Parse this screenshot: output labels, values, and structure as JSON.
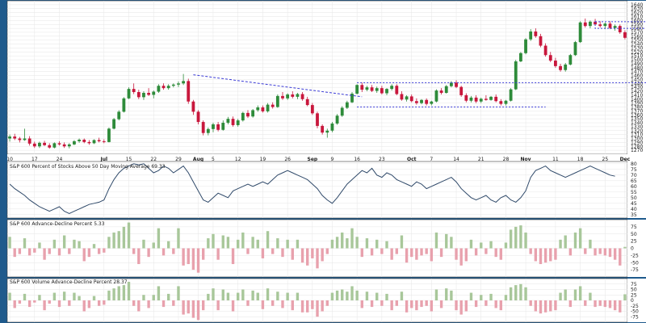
{
  "colors": {
    "frame": "#1f5a8c",
    "panel_bg": "#ffffff",
    "panel_border": "#3a3a3a",
    "grid": "#e6e6e6",
    "up": "#2e8b3a",
    "down": "#c8173c",
    "bar_pos": "#a8c79a",
    "bar_neg": "#e8a1ad",
    "line": "#304a6a",
    "annotation": "#3b3bd6"
  },
  "chart_data": {
    "type": "candlestick",
    "x_labels": [
      {
        "i": 0,
        "label": "10"
      },
      {
        "i": 5,
        "label": "17"
      },
      {
        "i": 10,
        "label": "24"
      },
      {
        "i": 19,
        "label": "Jul",
        "month": true
      },
      {
        "i": 24,
        "label": "15"
      },
      {
        "i": 29,
        "label": "22"
      },
      {
        "i": 34,
        "label": "29"
      },
      {
        "i": 38,
        "label": "Aug",
        "month": true
      },
      {
        "i": 41,
        "label": "5"
      },
      {
        "i": 46,
        "label": "12"
      },
      {
        "i": 51,
        "label": "19"
      },
      {
        "i": 56,
        "label": "26"
      },
      {
        "i": 61,
        "label": "Sep",
        "month": true
      },
      {
        "i": 65,
        "label": "9"
      },
      {
        "i": 70,
        "label": "16"
      },
      {
        "i": 75,
        "label": "23"
      },
      {
        "i": 81,
        "label": "Oct",
        "month": true
      },
      {
        "i": 85,
        "label": "7"
      },
      {
        "i": 90,
        "label": "14"
      },
      {
        "i": 95,
        "label": "21"
      },
      {
        "i": 100,
        "label": "28"
      },
      {
        "i": 104,
        "label": "Nov",
        "month": true
      },
      {
        "i": 110,
        "label": "11"
      },
      {
        "i": 115,
        "label": "18"
      },
      {
        "i": 120,
        "label": "25"
      },
      {
        "i": 124,
        "label": "Dec",
        "month": true
      },
      {
        "i": 129,
        "label": "9"
      }
    ],
    "price_panel": {
      "ylim": [
        1260,
        1650
      ],
      "yticks": [
        1270,
        1280,
        1290,
        1300,
        1310,
        1320,
        1330,
        1340,
        1350,
        1360,
        1370,
        1380,
        1390,
        1400,
        1410,
        1420,
        1430,
        1440,
        1450,
        1460,
        1470,
        1480,
        1490,
        1500,
        1510,
        1520,
        1530,
        1540,
        1550,
        1560,
        1570,
        1580,
        1590,
        1600,
        1610,
        1620,
        1630,
        1640
      ],
      "ohlc": [
        [
          1300,
          1310,
          1292,
          1305
        ],
        [
          1305,
          1312,
          1296,
          1300
        ],
        [
          1300,
          1304,
          1290,
          1296
        ],
        [
          1296,
          1325,
          1294,
          1300
        ],
        [
          1300,
          1306,
          1282,
          1287
        ],
        [
          1287,
          1292,
          1276,
          1280
        ],
        [
          1280,
          1292,
          1276,
          1289
        ],
        [
          1289,
          1294,
          1281,
          1283
        ],
        [
          1283,
          1288,
          1274,
          1277
        ],
        [
          1277,
          1290,
          1275,
          1288
        ],
        [
          1288,
          1293,
          1282,
          1285
        ],
        [
          1285,
          1290,
          1276,
          1280
        ],
        [
          1280,
          1288,
          1275,
          1285
        ],
        [
          1285,
          1296,
          1283,
          1293
        ],
        [
          1293,
          1300,
          1289,
          1297
        ],
        [
          1297,
          1300,
          1288,
          1291
        ],
        [
          1291,
          1296,
          1284,
          1288
        ],
        [
          1288,
          1298,
          1286,
          1296
        ],
        [
          1296,
          1302,
          1290,
          1293
        ],
        [
          1293,
          1298,
          1288,
          1291
        ],
        [
          1291,
          1328,
          1290,
          1325
        ],
        [
          1325,
          1352,
          1323,
          1349
        ],
        [
          1349,
          1372,
          1346,
          1368
        ],
        [
          1368,
          1405,
          1366,
          1402
        ],
        [
          1402,
          1430,
          1400,
          1426
        ],
        [
          1426,
          1440,
          1413,
          1418
        ],
        [
          1418,
          1424,
          1400,
          1405
        ],
        [
          1405,
          1420,
          1398,
          1416
        ],
        [
          1416,
          1428,
          1408,
          1411
        ],
        [
          1411,
          1422,
          1402,
          1419
        ],
        [
          1419,
          1438,
          1416,
          1434
        ],
        [
          1434,
          1440,
          1424,
          1428
        ],
        [
          1428,
          1438,
          1424,
          1434
        ],
        [
          1434,
          1440,
          1430,
          1437
        ],
        [
          1437,
          1445,
          1431,
          1440
        ],
        [
          1440,
          1464,
          1436,
          1446
        ],
        [
          1446,
          1452,
          1388,
          1394
        ],
        [
          1394,
          1398,
          1360,
          1368
        ],
        [
          1368,
          1372,
          1336,
          1342
        ],
        [
          1342,
          1346,
          1308,
          1314
        ],
        [
          1314,
          1328,
          1308,
          1324
        ],
        [
          1324,
          1340,
          1316,
          1336
        ],
        [
          1336,
          1342,
          1318,
          1322
        ],
        [
          1322,
          1346,
          1320,
          1340
        ],
        [
          1340,
          1355,
          1336,
          1350
        ],
        [
          1350,
          1356,
          1330,
          1334
        ],
        [
          1334,
          1350,
          1330,
          1346
        ],
        [
          1346,
          1368,
          1343,
          1365
        ],
        [
          1365,
          1372,
          1352,
          1356
        ],
        [
          1356,
          1375,
          1353,
          1372
        ],
        [
          1372,
          1384,
          1368,
          1379
        ],
        [
          1379,
          1384,
          1366,
          1369
        ],
        [
          1369,
          1390,
          1366,
          1386
        ],
        [
          1386,
          1392,
          1376,
          1380
        ],
        [
          1380,
          1412,
          1378,
          1408
        ],
        [
          1408,
          1418,
          1398,
          1402
        ],
        [
          1402,
          1415,
          1398,
          1412
        ],
        [
          1412,
          1420,
          1402,
          1406
        ],
        [
          1406,
          1416,
          1400,
          1413
        ],
        [
          1413,
          1418,
          1396,
          1400
        ],
        [
          1400,
          1406,
          1382,
          1385
        ],
        [
          1385,
          1390,
          1360,
          1364
        ],
        [
          1364,
          1368,
          1326,
          1332
        ],
        [
          1332,
          1336,
          1310,
          1315
        ],
        [
          1315,
          1325,
          1302,
          1320
        ],
        [
          1320,
          1342,
          1316,
          1338
        ],
        [
          1338,
          1362,
          1335,
          1358
        ],
        [
          1358,
          1382,
          1355,
          1378
        ],
        [
          1378,
          1396,
          1375,
          1392
        ],
        [
          1392,
          1418,
          1390,
          1414
        ],
        [
          1414,
          1438,
          1412,
          1436
        ],
        [
          1436,
          1442,
          1418,
          1424
        ],
        [
          1424,
          1434,
          1420,
          1430
        ],
        [
          1430,
          1436,
          1418,
          1421
        ],
        [
          1421,
          1432,
          1416,
          1428
        ],
        [
          1428,
          1434,
          1412,
          1415
        ],
        [
          1415,
          1428,
          1410,
          1426
        ],
        [
          1426,
          1438,
          1422,
          1434
        ],
        [
          1434,
          1438,
          1410,
          1413
        ],
        [
          1413,
          1420,
          1396,
          1399
        ],
        [
          1399,
          1410,
          1394,
          1407
        ],
        [
          1407,
          1412,
          1392,
          1395
        ],
        [
          1395,
          1402,
          1386,
          1390
        ],
        [
          1390,
          1400,
          1387,
          1398
        ],
        [
          1398,
          1402,
          1384,
          1388
        ],
        [
          1388,
          1396,
          1384,
          1394
        ],
        [
          1394,
          1425,
          1392,
          1422
        ],
        [
          1422,
          1428,
          1412,
          1416
        ],
        [
          1416,
          1436,
          1414,
          1433
        ],
        [
          1433,
          1446,
          1430,
          1442
        ],
        [
          1442,
          1448,
          1428,
          1431
        ],
        [
          1431,
          1434,
          1406,
          1410
        ],
        [
          1410,
          1415,
          1392,
          1396
        ],
        [
          1396,
          1408,
          1392,
          1404
        ],
        [
          1404,
          1410,
          1390,
          1394
        ],
        [
          1394,
          1404,
          1390,
          1401
        ],
        [
          1401,
          1410,
          1396,
          1398
        ],
        [
          1398,
          1408,
          1396,
          1406
        ],
        [
          1406,
          1412,
          1392,
          1395
        ],
        [
          1395,
          1400,
          1384,
          1388
        ],
        [
          1388,
          1398,
          1384,
          1396
        ],
        [
          1396,
          1428,
          1394,
          1425
        ],
        [
          1425,
          1500,
          1423,
          1496
        ],
        [
          1496,
          1520,
          1494,
          1517
        ],
        [
          1517,
          1555,
          1514,
          1552
        ],
        [
          1552,
          1578,
          1548,
          1572
        ],
        [
          1572,
          1580,
          1556,
          1560
        ],
        [
          1560,
          1566,
          1532,
          1536
        ],
        [
          1536,
          1542,
          1508,
          1512
        ],
        [
          1512,
          1520,
          1494,
          1498
        ],
        [
          1498,
          1505,
          1480,
          1484
        ],
        [
          1484,
          1490,
          1470,
          1474
        ],
        [
          1474,
          1492,
          1470,
          1488
        ],
        [
          1488,
          1515,
          1486,
          1512
        ],
        [
          1512,
          1548,
          1510,
          1545
        ],
        [
          1545,
          1598,
          1543,
          1595
        ],
        [
          1595,
          1605,
          1582,
          1586
        ],
        [
          1586,
          1600,
          1580,
          1597
        ],
        [
          1597,
          1604,
          1586,
          1590
        ],
        [
          1590,
          1598,
          1582,
          1586
        ],
        [
          1586,
          1595,
          1578,
          1592
        ],
        [
          1592,
          1598,
          1578,
          1581
        ],
        [
          1581,
          1590,
          1574,
          1586
        ],
        [
          1586,
          1590,
          1566,
          1570
        ],
        [
          1570,
          1575,
          1552,
          1556
        ]
      ],
      "trendline": {
        "from": [
          37,
          1462
        ],
        "to": [
          71,
          1406
        ]
      },
      "resistance": {
        "from": [
          70,
          1442
        ],
        "to": [
          134,
          1442
        ]
      },
      "support": {
        "from": [
          70,
          1380
        ],
        "to": [
          108,
          1380
        ]
      },
      "box": {
        "x": [
          118,
          134
        ],
        "y": [
          1580,
          1597
        ]
      }
    },
    "breadth_panel": {
      "title": "S&P 600 Percent of Stocks Above 50 Day Moving Average 69.33",
      "ylim": [
        32,
        82
      ],
      "yticks": [
        35,
        40,
        45,
        50,
        55,
        60,
        65,
        70,
        75,
        80
      ],
      "values": [
        62,
        58,
        55,
        52,
        48,
        45,
        42,
        40,
        38,
        40,
        42,
        38,
        36,
        38,
        40,
        42,
        44,
        45,
        46,
        48,
        58,
        66,
        72,
        76,
        78,
        80,
        79,
        80,
        76,
        72,
        74,
        78,
        76,
        72,
        75,
        78,
        72,
        64,
        56,
        48,
        46,
        50,
        54,
        52,
        50,
        56,
        58,
        60,
        62,
        60,
        62,
        64,
        62,
        66,
        70,
        72,
        74,
        72,
        70,
        68,
        66,
        62,
        58,
        52,
        48,
        45,
        50,
        56,
        62,
        66,
        70,
        74,
        72,
        76,
        70,
        68,
        72,
        70,
        66,
        64,
        62,
        60,
        64,
        62,
        58,
        60,
        62,
        64,
        66,
        68,
        64,
        58,
        54,
        50,
        48,
        50,
        52,
        48,
        46,
        50,
        52,
        48,
        46,
        50,
        56,
        68,
        74,
        76,
        78,
        74,
        72,
        70,
        68,
        70,
        72,
        74,
        76,
        78,
        76,
        74,
        72,
        70,
        69
      ],
      "label_value": "69.33"
    },
    "ad_panel": {
      "title": "S&P 600 Advance-Decline Percent 5.33",
      "ylim": [
        -100,
        100
      ],
      "yticks": [
        -75,
        -50,
        -25,
        0,
        25,
        50,
        75,
        100
      ],
      "values": [
        40,
        -30,
        -20,
        35,
        -25,
        -15,
        20,
        -40,
        -20,
        30,
        -25,
        45,
        -20,
        30,
        25,
        -45,
        -30,
        15,
        -20,
        -15,
        40,
        55,
        60,
        75,
        90,
        -20,
        -55,
        30,
        -30,
        20,
        70,
        -25,
        25,
        -20,
        70,
        -60,
        -55,
        -75,
        -85,
        -40,
        35,
        50,
        -40,
        45,
        40,
        -55,
        30,
        55,
        -20,
        40,
        30,
        -35,
        60,
        -20,
        35,
        -30,
        30,
        -40,
        30,
        -50,
        -60,
        -35,
        -70,
        -45,
        -20,
        30,
        40,
        55,
        35,
        70,
        40,
        -30,
        35,
        -25,
        30,
        -20,
        25,
        -40,
        -20,
        45,
        -50,
        -30,
        -40,
        -25,
        -20,
        -45,
        55,
        -30,
        50,
        40,
        -40,
        -60,
        -45,
        30,
        -25,
        20,
        -20,
        25,
        -30,
        -40,
        20,
        65,
        75,
        80,
        55,
        -20,
        -45,
        -55,
        -50,
        -45,
        -40,
        30,
        45,
        -25,
        55,
        70,
        -20,
        30,
        -25,
        -20,
        -25,
        -30,
        -40,
        -60,
        5
      ]
    },
    "vol_panel": {
      "title": "S&P 600 Volume Advance-Decline Percent 28.37",
      "ylim": [
        -100,
        100
      ],
      "yticks": [
        -75,
        -50,
        -25,
        0,
        25,
        50,
        75,
        100
      ],
      "values": [
        35,
        -35,
        -15,
        30,
        -30,
        -10,
        25,
        -45,
        -15,
        35,
        -30,
        40,
        -25,
        35,
        20,
        -50,
        -35,
        20,
        -25,
        -20,
        45,
        55,
        65,
        70,
        85,
        -25,
        -50,
        25,
        -35,
        25,
        65,
        -30,
        30,
        -25,
        65,
        -65,
        -60,
        -80,
        -90,
        -45,
        30,
        55,
        -45,
        50,
        35,
        -50,
        35,
        50,
        -25,
        45,
        35,
        -40,
        55,
        -25,
        40,
        -35,
        35,
        -45,
        35,
        -55,
        -55,
        -40,
        -75,
        -50,
        -25,
        35,
        45,
        50,
        40,
        65,
        45,
        -35,
        40,
        -30,
        35,
        -25,
        30,
        -45,
        -25,
        40,
        -55,
        -35,
        -45,
        -30,
        -25,
        -50,
        50,
        -35,
        55,
        45,
        -45,
        -65,
        -50,
        35,
        -30,
        25,
        -25,
        30,
        -35,
        -45,
        25,
        60,
        70,
        75,
        60,
        -25,
        -50,
        -60,
        -55,
        -50,
        -45,
        35,
        50,
        -30,
        50,
        65,
        -25,
        35,
        -30,
        -25,
        -30,
        -35,
        -45,
        -55,
        28
      ]
    }
  }
}
